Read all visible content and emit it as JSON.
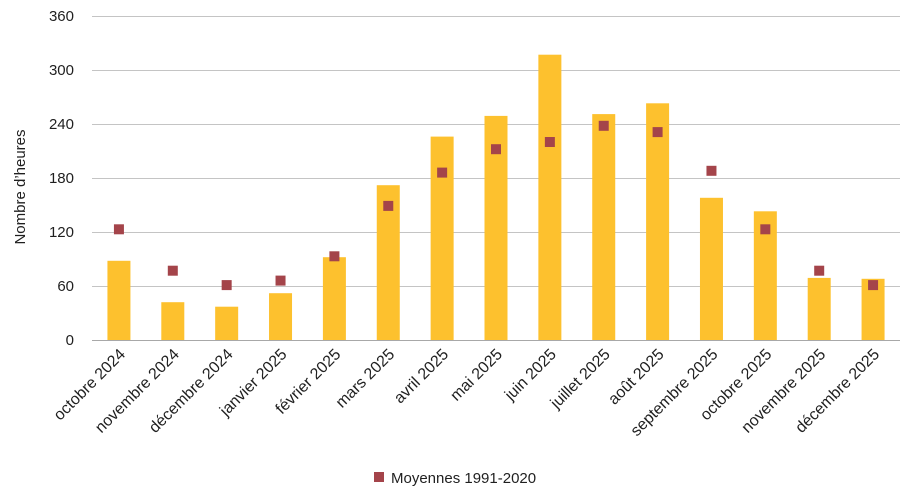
{
  "chart_data": {
    "type": "bar",
    "xlabel": "",
    "ylabel": "Nombre d’heures",
    "ylim": [
      0,
      360
    ],
    "yticks": [
      0,
      60,
      120,
      180,
      240,
      300,
      360
    ],
    "grid": true,
    "legend_position": "bottom",
    "categories": [
      "octobre 2024",
      "novembre 2024",
      "décembre 2024",
      "janvier 2025",
      "février 2025",
      "mars 2025",
      "avril 2025",
      "mai 2025",
      "juin 2025",
      "juillet 2025",
      "août 2025",
      "septembre 2025",
      "octobre 2025",
      "novembre 2025",
      "décembre 2025"
    ],
    "series": [
      {
        "type": "bar",
        "color": "#FDC12E",
        "values": [
          88,
          42,
          37,
          52,
          92,
          172,
          226,
          249,
          317,
          251,
          263,
          158,
          143,
          69,
          68
        ]
      },
      {
        "name": "Moyennes 1991-2020",
        "type": "marker",
        "marker": "square",
        "color": "#A4444A",
        "values": [
          123,
          77,
          61,
          66,
          93,
          149,
          186,
          212,
          220,
          238,
          231,
          188,
          123,
          77,
          61
        ]
      }
    ]
  }
}
